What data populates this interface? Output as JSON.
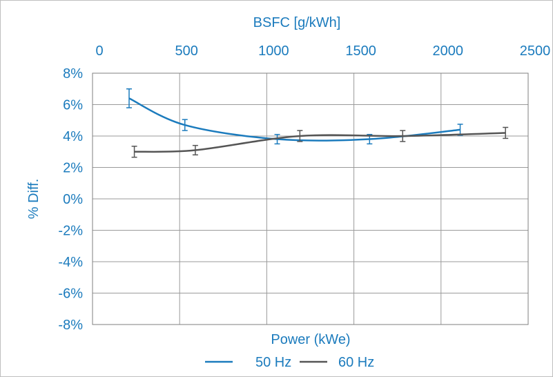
{
  "chart_data": {
    "type": "line",
    "title": "",
    "top_axis_label": "BSFC [g/kWh]",
    "top_ticks": [
      "0",
      "500",
      "1000",
      "1500",
      "2000",
      "2500"
    ],
    "top_range": [
      0,
      2500
    ],
    "xlabel": "Power (kWe)",
    "ylabel": "% Diff.",
    "y_ticks": [
      "8%",
      "6%",
      "4%",
      "2%",
      "0%",
      "-2%",
      "-4%",
      "-6%",
      "-8%"
    ],
    "ylim": [
      -8,
      8
    ],
    "grid": true,
    "legend_position": "bottom",
    "series": [
      {
        "name": "50 Hz",
        "color": "#1b7bbd",
        "x": [
          210,
          530,
          1060,
          1590,
          2110
        ],
        "y": [
          6.4,
          4.7,
          3.8,
          3.8,
          4.4
        ],
        "error": [
          0.6,
          0.35,
          0.3,
          0.3,
          0.35
        ]
      },
      {
        "name": "60 Hz",
        "color": "#555555",
        "x": [
          240,
          590,
          1190,
          1780,
          2370
        ],
        "y": [
          3.0,
          3.1,
          4.0,
          4.0,
          4.2
        ],
        "error": [
          0.35,
          0.3,
          0.35,
          0.35,
          0.35
        ]
      }
    ]
  }
}
